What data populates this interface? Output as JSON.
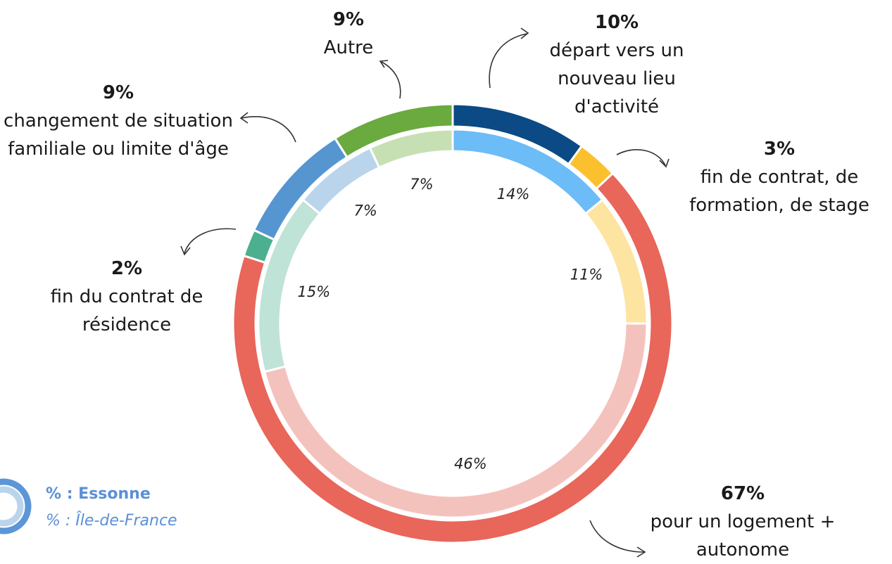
{
  "chart_data": {
    "type": "donut",
    "categories": [
      "départ vers un nouveau lieu d'activité",
      "fin de contrat, de formation, de stage",
      "pour un logement + autonome",
      "fin du contrat de résidence",
      "changement de situation familiale ou limite d'âge",
      "Autre"
    ],
    "series": [
      {
        "name": "% : Essonne",
        "values": [
          10,
          3,
          67,
          2,
          9,
          9
        ],
        "value_labels": [
          "10%",
          "3%",
          "67%",
          "2%",
          "9%",
          "9%"
        ],
        "colors": [
          "#0b4a84",
          "#fbc02d",
          "#e8665a",
          "#4caf8f",
          "#5596d0",
          "#6aaa3f"
        ]
      },
      {
        "name": "% : Île-de-France",
        "values": [
          14,
          11,
          46,
          15,
          7,
          7
        ],
        "value_labels": [
          "14%",
          "11%",
          "46%",
          "15%",
          "7%",
          "7%"
        ],
        "colors": [
          "#6bbcf7",
          "#fde4a0",
          "#f4c2bd",
          "#bfe3d6",
          "#bad4ec",
          "#c6e0b4"
        ]
      }
    ]
  }
}
